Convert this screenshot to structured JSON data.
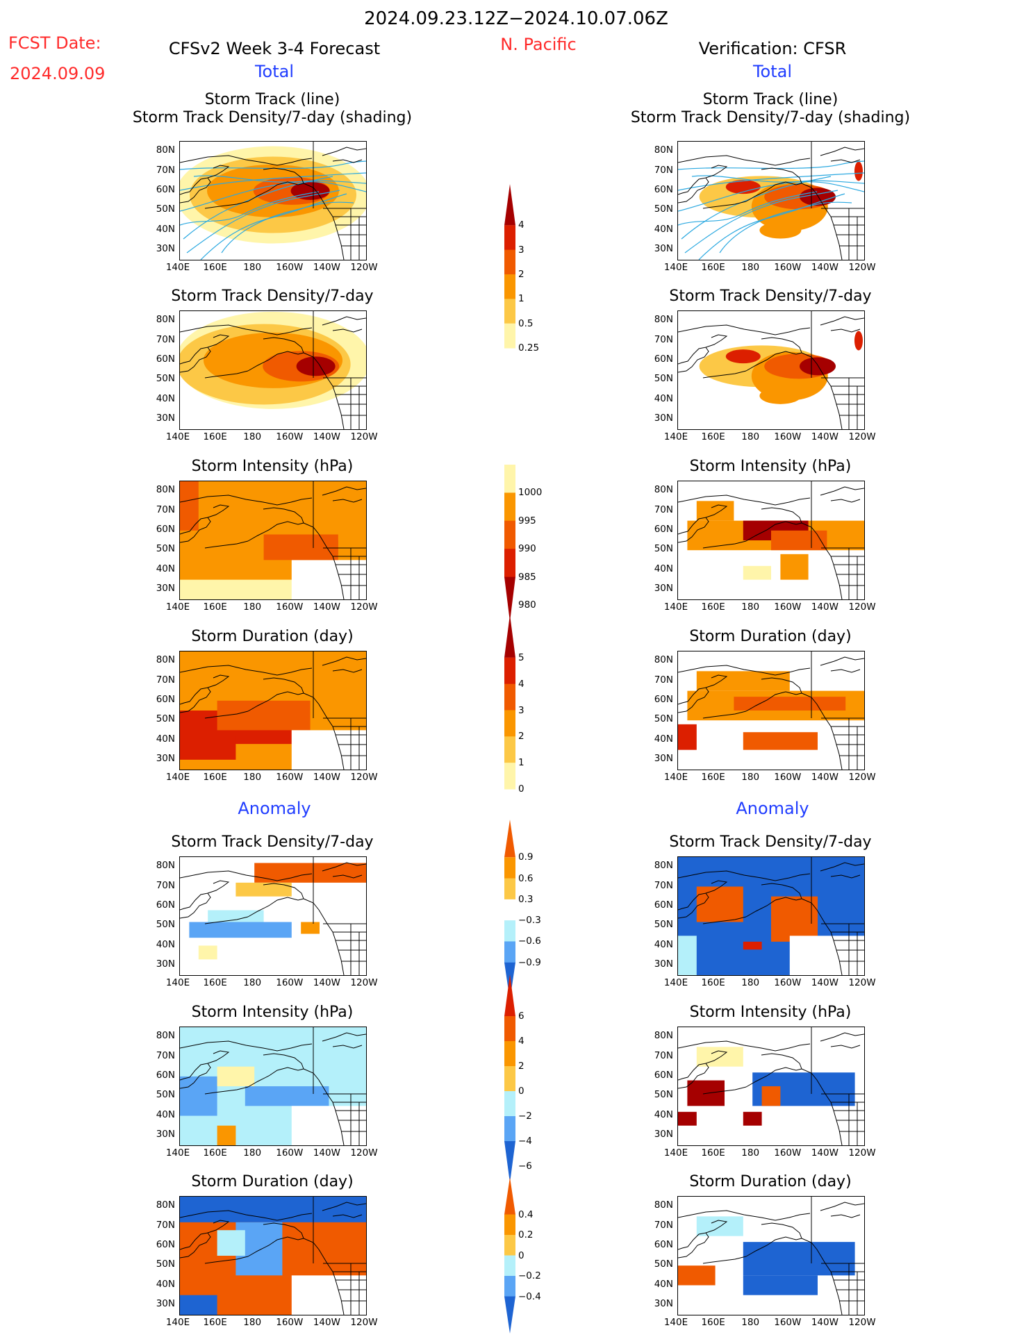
{
  "header": {
    "date_range": "2024.09.23.12Z−2024.10.07.06Z",
    "fcst_label": "FCST Date:",
    "fcst_date": "2024.09.09",
    "model_title": "CFSv2 Week 3-4 Forecast",
    "region": "N. Pacific",
    "verification_title": "Verification: CFSR",
    "left_total": "Total",
    "right_total": "Total",
    "left_anomaly": "Anomaly",
    "right_anomaly": "Anomaly"
  },
  "axes": {
    "y_ticks": [
      "80N",
      "70N",
      "60N",
      "50N",
      "40N",
      "30N"
    ],
    "x_ticks": [
      "140E",
      "160E",
      "180",
      "160W",
      "140W",
      "120W"
    ]
  },
  "panel_titles": {
    "track_line": "Storm Track (line)",
    "track_shading": "Storm Track Density/7-day (shading)",
    "density": "Storm Track Density/7-day",
    "intensity": "Storm Intensity (hPa)",
    "duration": "Storm Duration (day)"
  },
  "colors": {
    "dark_red": "#a50000",
    "red": "#dc1f00",
    "orange_red": "#f05a00",
    "orange": "#fa9600",
    "light_orange": "#fcc846",
    "pale_yellow": "#fff5aa",
    "light_blue": "#b4f0fa",
    "mid_blue": "#5aa5f5",
    "dark_blue": "#1e64d2",
    "track_line": "#2aa8e0"
  },
  "chart_data": [
    {
      "type": "heatmap",
      "id": "fcst_total_density_tracks",
      "title": "Storm Track (line)",
      "subtitle": "Storm Track Density/7-day (shading)",
      "x_range": [
        140,
        240
      ],
      "y_range": [
        25,
        85
      ]
    },
    {
      "type": "heatmap",
      "id": "cfsr_total_density_tracks",
      "title": "Storm Track (line)",
      "subtitle": "Storm Track Density/7-day (shading)",
      "x_range": [
        140,
        240
      ],
      "y_range": [
        25,
        85
      ]
    },
    {
      "type": "heatmap",
      "id": "fcst_total_density",
      "title": "Storm Track Density/7-day",
      "x_range": [
        140,
        240
      ],
      "y_range": [
        25,
        85
      ]
    },
    {
      "type": "heatmap",
      "id": "cfsr_total_density",
      "title": "Storm Track Density/7-day",
      "x_range": [
        140,
        240
      ],
      "y_range": [
        25,
        85
      ]
    },
    {
      "type": "heatmap",
      "id": "fcst_total_intensity",
      "title": "Storm Intensity (hPa)",
      "x_range": [
        140,
        240
      ],
      "y_range": [
        25,
        85
      ]
    },
    {
      "type": "heatmap",
      "id": "cfsr_total_intensity",
      "title": "Storm Intensity (hPa)",
      "x_range": [
        140,
        240
      ],
      "y_range": [
        25,
        85
      ]
    },
    {
      "type": "heatmap",
      "id": "fcst_total_duration",
      "title": "Storm Duration (day)",
      "x_range": [
        140,
        240
      ],
      "y_range": [
        25,
        85
      ]
    },
    {
      "type": "heatmap",
      "id": "cfsr_total_duration",
      "title": "Storm Duration (day)",
      "x_range": [
        140,
        240
      ],
      "y_range": [
        25,
        85
      ]
    },
    {
      "type": "heatmap",
      "id": "fcst_anom_density",
      "title": "Storm Track Density/7-day",
      "x_range": [
        140,
        240
      ],
      "y_range": [
        25,
        85
      ]
    },
    {
      "type": "heatmap",
      "id": "cfsr_anom_density",
      "title": "Storm Track Density/7-day",
      "x_range": [
        140,
        240
      ],
      "y_range": [
        25,
        85
      ]
    },
    {
      "type": "heatmap",
      "id": "fcst_anom_intensity",
      "title": "Storm Intensity (hPa)",
      "x_range": [
        140,
        240
      ],
      "y_range": [
        25,
        85
      ]
    },
    {
      "type": "heatmap",
      "id": "cfsr_anom_intensity",
      "title": "Storm Intensity (hPa)",
      "x_range": [
        140,
        240
      ],
      "y_range": [
        25,
        85
      ]
    },
    {
      "type": "heatmap",
      "id": "fcst_anom_duration",
      "title": "Storm Duration (day)",
      "x_range": [
        140,
        240
      ],
      "y_range": [
        25,
        85
      ]
    },
    {
      "type": "heatmap",
      "id": "cfsr_anom_duration",
      "title": "Storm Duration (day)",
      "x_range": [
        140,
        240
      ],
      "y_range": [
        25,
        85
      ]
    }
  ],
  "colorbars": [
    {
      "id": "density_total",
      "labels": [
        "4",
        "3",
        "2",
        "1",
        "0.5",
        "0.25"
      ],
      "colors": [
        "#a50000",
        "#dc1f00",
        "#f05a00",
        "#fa9600",
        "#fcc846",
        "#fff5aa"
      ],
      "arrow": "up"
    },
    {
      "id": "intensity_total",
      "labels": [
        "1000",
        "995",
        "990",
        "985",
        "980"
      ],
      "colors": [
        "#fff5aa",
        "#fa9600",
        "#f05a00",
        "#dc1f00",
        "#a50000"
      ],
      "arrow": "down"
    },
    {
      "id": "duration_total",
      "labels": [
        "5",
        "4",
        "3",
        "2",
        "1",
        "0"
      ],
      "colors": [
        "#a50000",
        "#dc1f00",
        "#f05a00",
        "#fa9600",
        "#fcc846",
        "#fff5aa"
      ],
      "arrow": "up"
    },
    {
      "id": "density_anom",
      "labels": [
        "0.9",
        "0.6",
        "0.3",
        "−0.3",
        "−0.6",
        "−0.9"
      ],
      "colors": [
        "#f05a00",
        "#fa9600",
        "#fcc846",
        "#ffffff",
        "#b4f0fa",
        "#5aa5f5",
        "#1e64d2"
      ],
      "arrow": "both"
    },
    {
      "id": "intensity_anom",
      "labels": [
        "6",
        "4",
        "2",
        "0",
        "−2",
        "−4",
        "−6"
      ],
      "colors": [
        "#dc1f00",
        "#f05a00",
        "#fa9600",
        "#fcc846",
        "#b4f0fa",
        "#5aa5f5",
        "#1e64d2"
      ],
      "arrow": "both"
    },
    {
      "id": "duration_anom",
      "labels": [
        "0.4",
        "0.2",
        "0",
        "−0.2",
        "−0.4"
      ],
      "colors": [
        "#f05a00",
        "#fa9600",
        "#fcc846",
        "#b4f0fa",
        "#5aa5f5",
        "#1e64d2"
      ],
      "arrow": "both"
    }
  ]
}
